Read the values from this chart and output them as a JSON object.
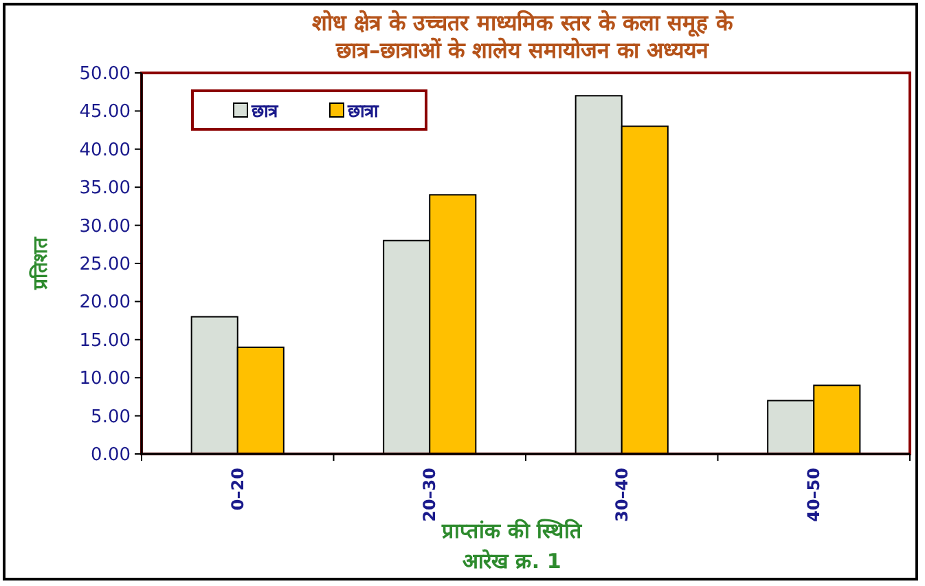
{
  "chart_data": {
    "type": "bar",
    "title": "शोध क्षेत्र के उच्चतर माध्यमिक स्तर के कला समूह के\nछात्र–छात्राओं के शालेय समायोजन का अध्ययन",
    "xlabel": "प्राप्तांक की स्थिति",
    "ylabel": "प्रतिशत",
    "annotations": [
      "आरेख क्र.  1"
    ],
    "categories": [
      "0–20",
      "20–30",
      "30–40",
      "40–50"
    ],
    "series": [
      {
        "name": "छात्र",
        "color": "#d8e0d8",
        "values": [
          18,
          28,
          47,
          7
        ]
      },
      {
        "name": "छात्रा",
        "color": "#ffc000",
        "values": [
          14,
          34,
          43,
          9
        ]
      }
    ],
    "ylim": [
      0,
      50
    ],
    "yticks": [
      {
        "value": 0,
        "label": "0.00"
      },
      {
        "value": 5,
        "label": "5.00"
      },
      {
        "value": 10,
        "label": "10.00"
      },
      {
        "value": 15,
        "label": "15.00"
      },
      {
        "value": 20,
        "label": "20.00"
      },
      {
        "value": 25,
        "label": "25.00"
      },
      {
        "value": 30,
        "label": "30.00"
      },
      {
        "value": 35,
        "label": "35.00"
      },
      {
        "value": 40,
        "label": "40.00"
      },
      {
        "value": 45,
        "label": "45.00"
      },
      {
        "value": 50,
        "label": "50.00"
      }
    ],
    "legend": "top left",
    "grid": false
  }
}
